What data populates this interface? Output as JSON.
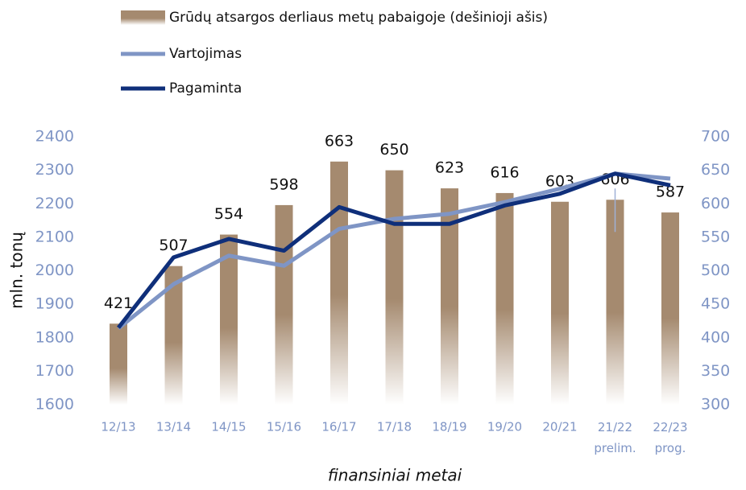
{
  "chart_data": {
    "type": "bar_line",
    "y_axis_label": "mln. tonų",
    "x_axis_label": "finansiniai metai",
    "categories": [
      "12/13",
      "13/14",
      "14/15",
      "15/16",
      "16/17",
      "17/18",
      "18/19",
      "19/20",
      "20/21",
      "21/22 prelim.",
      "22/23 prog."
    ],
    "series": [
      {
        "name": "Grūdų atsargos derliaus metų pabaigoje (dešinioji ašis)",
        "type": "bar",
        "axis": "y2",
        "color": "#a58a6f",
        "values": [
          421,
          507,
          554,
          598,
          663,
          650,
          623,
          616,
          603,
          606,
          587
        ]
      },
      {
        "name": "Vartojimas",
        "type": "line",
        "color": "#7f95c5",
        "values": [
          1828,
          1960,
          2045,
          2015,
          2125,
          2155,
          2170,
          2205,
          2245,
          2290,
          2275
        ]
      },
      {
        "name": "Pagaminta",
        "type": "line",
        "color": "#0f2f7a",
        "values": [
          1830,
          2040,
          2095,
          2060,
          2190,
          2140,
          2140,
          2195,
          2230,
          2290,
          2255
        ]
      }
    ],
    "ylim": [
      1600,
      2400
    ],
    "yticks": [
      1600,
      1700,
      1800,
      1900,
      2000,
      2100,
      2200,
      2300,
      2400
    ],
    "y2lim": [
      300,
      700
    ],
    "y2ticks": [
      300,
      350,
      400,
      450,
      500,
      550,
      600,
      650,
      700
    ]
  }
}
